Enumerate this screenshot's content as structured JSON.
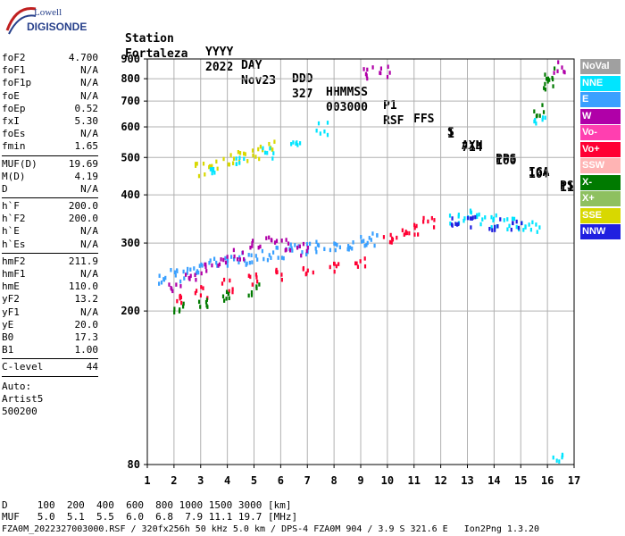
{
  "logo": {
    "line1": "Lowell",
    "line2": "DIGISONDE"
  },
  "header": {
    "labels": [
      "Station",
      "YYYY",
      "DAY",
      "DDD",
      "HHMMSS",
      "P1",
      "FFS",
      "S",
      "AXN",
      "PPS",
      "IGA",
      "PS"
    ],
    "values": [
      "Fortaleza",
      "2022",
      "Nov23",
      "327",
      "003000",
      "RSF",
      "1",
      "714",
      "100",
      "10+",
      "11"
    ]
  },
  "params": {
    "group1": [
      {
        "label": "foF2",
        "value": "4.700"
      },
      {
        "label": "foF1",
        "value": "N/A"
      },
      {
        "label": "foF1p",
        "value": "N/A"
      },
      {
        "label": "foE",
        "value": "N/A"
      },
      {
        "label": "foEp",
        "value": "0.52"
      },
      {
        "label": "fxI",
        "value": "5.30"
      },
      {
        "label": "foEs",
        "value": "N/A"
      },
      {
        "label": "fmin",
        "value": "1.65"
      }
    ],
    "group2": [
      {
        "label": "MUF(D)",
        "value": "19.69"
      },
      {
        "label": "M(D)",
        "value": "4.19"
      },
      {
        "label": "D",
        "value": "N/A"
      }
    ],
    "group3": [
      {
        "label": "h`F",
        "value": "200.0"
      },
      {
        "label": "h`F2",
        "value": "200.0"
      },
      {
        "label": "h`E",
        "value": "N/A"
      },
      {
        "label": "h`Es",
        "value": "N/A"
      }
    ],
    "group4": [
      {
        "label": "hmF2",
        "value": "211.9"
      },
      {
        "label": "hmF1",
        "value": "N/A"
      },
      {
        "label": "hmE",
        "value": "110.0"
      },
      {
        "label": "yF2",
        "value": "13.2"
      },
      {
        "label": "yF1",
        "value": "N/A"
      },
      {
        "label": "yE",
        "value": "20.0"
      },
      {
        "label": "B0",
        "value": "17.3"
      },
      {
        "label": "B1",
        "value": "1.00"
      }
    ],
    "clevel": {
      "label": "C-level",
      "value": "44"
    },
    "auto": [
      "Auto:",
      "Artist5",
      "500200"
    ]
  },
  "legend": [
    {
      "label": "NoVal",
      "color": "#a0a0a0"
    },
    {
      "label": "NNE",
      "color": "#00e5ff"
    },
    {
      "label": "E",
      "color": "#3aa0ff"
    },
    {
      "label": "W",
      "color": "#b000a8"
    },
    {
      "label": "Vo-",
      "color": "#ff3fb0"
    },
    {
      "label": "Vo+",
      "color": "#ff0033"
    },
    {
      "label": "SSW",
      "color": "#ffb4b4"
    },
    {
      "label": "X-",
      "color": "#007a00"
    },
    {
      "label": "X+",
      "color": "#8ec060"
    },
    {
      "label": "SSE",
      "color": "#d8d800"
    },
    {
      "label": "NNW",
      "color": "#2020e0"
    }
  ],
  "footer": {
    "d_row": "D     100  200  400  600  800 1000 1500 3000 [km]",
    "muf_row": "MUF   5.0  5.1  5.5  6.0  6.8  7.9 11.1 19.7 [MHz]",
    "file_row": "FZA0M_2022327003000.RSF / 320fx256h 50 kHz 5.0 km / DPS-4 FZA0M 904 / 3.9 S 321.6 E   Ion2Png 1.3.20"
  },
  "chart_data": {
    "type": "scatter",
    "x_ticks": [
      1,
      2,
      3,
      4,
      5,
      6,
      7,
      8,
      9,
      10,
      11,
      12,
      13,
      14,
      15,
      16,
      17
    ],
    "y_ticks": [
      80,
      200,
      300,
      400,
      500,
      600,
      700,
      800,
      900
    ],
    "xlim": [
      1,
      17
    ],
    "ylim": [
      80,
      900
    ],
    "y_scale": "log",
    "grid": true,
    "traces": [
      {
        "series": "E",
        "points": [
          [
            1.6,
            245
          ],
          [
            2.0,
            250
          ],
          [
            2.5,
            255
          ],
          [
            3.0,
            262
          ],
          [
            3.5,
            268
          ],
          [
            4.0,
            272
          ],
          [
            4.5,
            276
          ],
          [
            5.0,
            280
          ],
          [
            5.5,
            282
          ],
          [
            6.0,
            285
          ],
          [
            6.5,
            290
          ],
          [
            7.0,
            293
          ],
          [
            7.5,
            296
          ],
          [
            8.0,
            300
          ],
          [
            8.5,
            303
          ],
          [
            9.0,
            305
          ],
          [
            9.5,
            310
          ]
        ]
      },
      {
        "series": "W",
        "points": [
          [
            2.0,
            235
          ],
          [
            2.6,
            245
          ],
          [
            3.2,
            258
          ],
          [
            3.8,
            270
          ],
          [
            4.4,
            285
          ],
          [
            5.0,
            300
          ],
          [
            5.6,
            310
          ],
          [
            6.2,
            300
          ],
          [
            6.8,
            292
          ]
        ]
      },
      {
        "series": "Vo+",
        "points": [
          [
            2.2,
            215
          ],
          [
            3.0,
            225
          ],
          [
            4.0,
            235
          ],
          [
            5.0,
            245
          ],
          [
            6.0,
            252
          ],
          [
            7.0,
            258
          ],
          [
            8.0,
            263
          ],
          [
            9.0,
            268
          ]
        ]
      },
      {
        "series": "X-",
        "points": [
          [
            2.2,
            205
          ],
          [
            3.0,
            212
          ],
          [
            4.0,
            220
          ],
          [
            5.0,
            230
          ]
        ]
      },
      {
        "series": "SSE",
        "points": [
          [
            3.0,
            470
          ],
          [
            3.5,
            480
          ],
          [
            4.0,
            495
          ],
          [
            4.5,
            510
          ],
          [
            5.0,
            520
          ],
          [
            5.5,
            540
          ]
        ]
      },
      {
        "series": "NNE",
        "points": [
          [
            3.5,
            460
          ],
          [
            4.5,
            490
          ],
          [
            5.5,
            520
          ],
          [
            6.5,
            560
          ],
          [
            7.5,
            600
          ]
        ]
      },
      {
        "series": "NNE",
        "points": [
          [
            12.5,
            350
          ],
          [
            13.0,
            355
          ],
          [
            13.5,
            350
          ],
          [
            14.0,
            345
          ],
          [
            14.5,
            340
          ],
          [
            15.0,
            340
          ],
          [
            15.5,
            335
          ]
        ]
      },
      {
        "series": "Vo+",
        "points": [
          [
            10.0,
            310
          ],
          [
            10.5,
            320
          ],
          [
            11.0,
            330
          ],
          [
            11.5,
            340
          ]
        ]
      },
      {
        "series": "NNW",
        "points": [
          [
            12.5,
            340
          ],
          [
            13.2,
            345
          ],
          [
            14.0,
            340
          ],
          [
            14.8,
            338
          ]
        ]
      },
      {
        "series": "W",
        "points": [
          [
            9.2,
            835
          ],
          [
            9.9,
            845
          ],
          [
            16.4,
            865
          ]
        ]
      },
      {
        "series": "X-",
        "points": [
          [
            16.0,
            780
          ],
          [
            16.0,
            830
          ],
          [
            15.7,
            670
          ]
        ]
      },
      {
        "series": "NNE",
        "points": [
          [
            15.7,
            620
          ],
          [
            16.3,
            85
          ]
        ]
      }
    ]
  }
}
